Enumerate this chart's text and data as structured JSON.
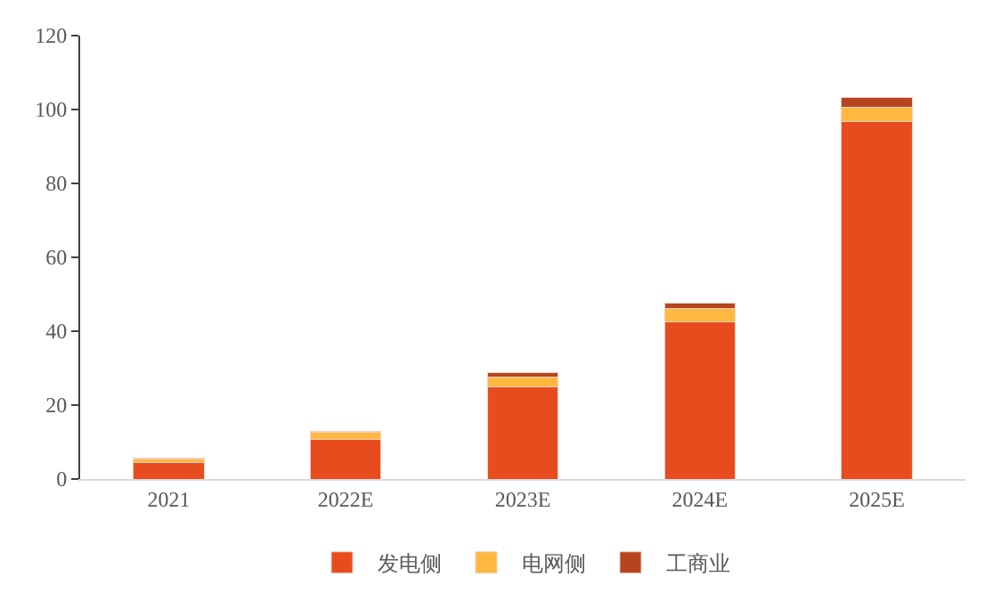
{
  "chart_data": {
    "type": "bar",
    "stacked": true,
    "categories": [
      "2021",
      "2022E",
      "2023E",
      "2024E",
      "2025E"
    ],
    "series": [
      {
        "name": "发电侧",
        "color": "#e84c1e",
        "values": [
          4.5,
          10.8,
          25,
          42.6,
          96.7
        ]
      },
      {
        "name": "电网侧",
        "color": "#ffb940",
        "values": [
          1.0,
          1.9,
          2.7,
          3.6,
          3.9
        ]
      },
      {
        "name": "工商业",
        "color": "#b5441f",
        "values": [
          0.2,
          0.3,
          1.2,
          1.5,
          2.7
        ]
      }
    ],
    "ylim": [
      0,
      120
    ],
    "yticks": [
      0,
      20,
      40,
      60,
      80,
      100,
      120
    ],
    "grid": false,
    "legend": "bottom"
  }
}
